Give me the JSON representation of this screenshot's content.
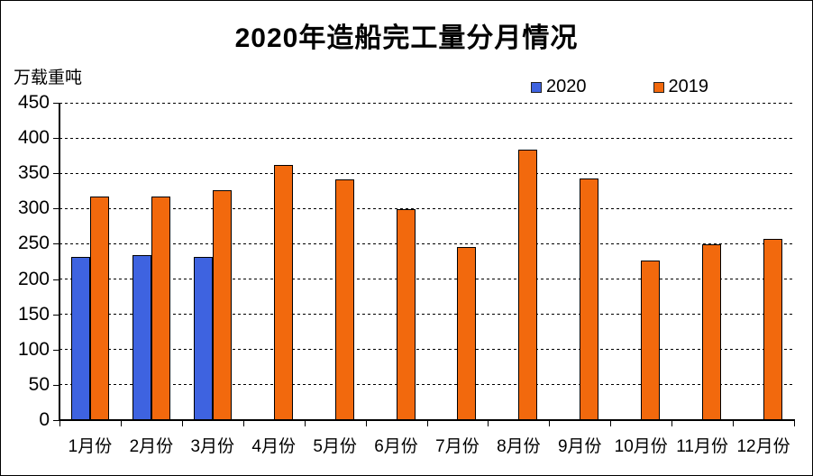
{
  "header": {
    "title": "2020年造船完工量分月情况",
    "y_unit_label": "万载重吨"
  },
  "chart_data": {
    "type": "bar",
    "title": "2020年造船完工量分月情况",
    "xlabel": "",
    "ylabel": "万载重吨",
    "ylim": [
      0,
      450
    ],
    "yticks": [
      0,
      50,
      100,
      150,
      200,
      250,
      300,
      350,
      400,
      450
    ],
    "grid": "horizontal-dashed",
    "legend_position": "top-right",
    "categories": [
      "1月份",
      "2月份",
      "3月份",
      "4月份",
      "5月份",
      "6月份",
      "7月份",
      "8月份",
      "9月份",
      "10月份",
      "11月份",
      "12月份"
    ],
    "series": [
      {
        "name": "2020",
        "color": "#3e63e0",
        "values": [
          232,
          234,
          232,
          null,
          null,
          null,
          null,
          null,
          null,
          null,
          null,
          null
        ]
      },
      {
        "name": "2019",
        "color": "#f2690d",
        "values": [
          317,
          317,
          326,
          362,
          341,
          299,
          245,
          383,
          342,
          226,
          249,
          257
        ]
      }
    ]
  }
}
